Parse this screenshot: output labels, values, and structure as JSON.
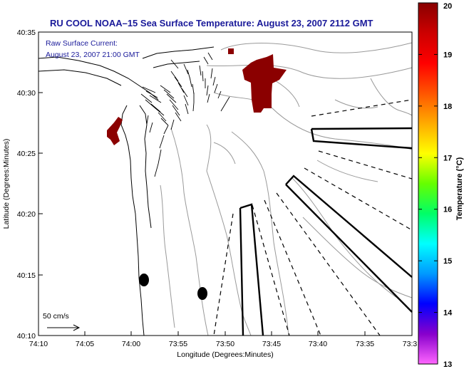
{
  "title": "RU COOL  NOAA–15  Sea Surface Temperature:  August 23, 2007 2112 GMT",
  "annotation": {
    "line1": "Raw Surface Current:",
    "line2": "August 23, 2007 21:00 GMT"
  },
  "scale": {
    "label": "50 cm/s"
  },
  "axes": {
    "xlabel": "Longitude (Degrees:Minutes)",
    "ylabel": "Latitude (Degrees:Minutes)",
    "x_ticks": [
      "74:10",
      "74:05",
      "74:00",
      "73:55",
      "73:50",
      "73:45",
      "73:40",
      "73:35",
      "73:3"
    ],
    "y_ticks": [
      "40:35",
      "40:30",
      "40:25",
      "40:20",
      "40:15",
      "40:10"
    ]
  },
  "colorbar": {
    "label": "Temperature (°C)",
    "ticks": [
      "20",
      "19",
      "18",
      "17",
      "16",
      "15",
      "14",
      "13"
    ],
    "min": 13,
    "max": 20,
    "colors": [
      "#ff66ff",
      "#8800cc",
      "#0000ff",
      "#0099ff",
      "#00ffff",
      "#00ff66",
      "#66ff00",
      "#ffff00",
      "#ffaa00",
      "#ff5500",
      "#ff0000",
      "#cc0000",
      "#880000"
    ]
  },
  "colors": {
    "sst_patch": "#8b0000",
    "title": "#1a1a9a",
    "contour": "#9a9a9a"
  }
}
